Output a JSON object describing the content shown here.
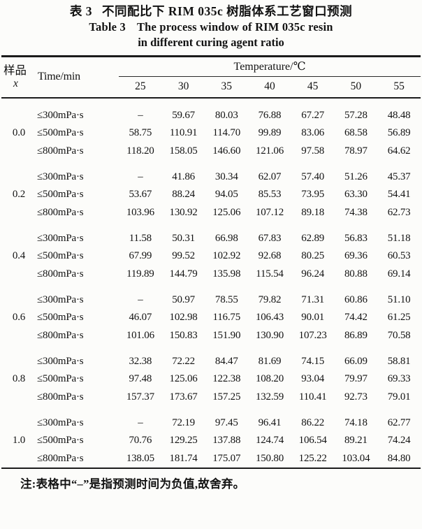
{
  "caption": {
    "zh_label": "表 3",
    "zh_title": "不同配比下 RIM 035c 树脂体系工艺窗口预测",
    "en_label": "Table 3",
    "en_title_line1": "The process window of RIM 035c resin",
    "en_title_line2": "in different curing agent ratio"
  },
  "header": {
    "sample_label": "样品",
    "sample_symbol": "x",
    "time_label": "Time/min",
    "temperature_label": "Temperature/℃",
    "temperatures": [
      "25",
      "30",
      "35",
      "40",
      "45",
      "50",
      "55"
    ]
  },
  "table": {
    "groups": [
      {
        "x": "0.0",
        "rows": [
          {
            "label": "≤300mPa·s",
            "values": [
              "–",
              "59.67",
              "80.03",
              "76.88",
              "67.27",
              "57.28",
              "48.48"
            ]
          },
          {
            "label": "≤500mPa·s",
            "values": [
              "58.75",
              "110.91",
              "114.70",
              "99.89",
              "83.06",
              "68.58",
              "56.89"
            ]
          },
          {
            "label": "≤800mPa·s",
            "values": [
              "118.20",
              "158.05",
              "146.60",
              "121.06",
              "97.58",
              "78.97",
              "64.62"
            ]
          }
        ]
      },
      {
        "x": "0.2",
        "rows": [
          {
            "label": "≤300mPa·s",
            "values": [
              "–",
              "41.86",
              "30.34",
              "62.07",
              "57.40",
              "51.26",
              "45.37"
            ]
          },
          {
            "label": "≤500mPa·s",
            "values": [
              "53.67",
              "88.24",
              "94.05",
              "85.53",
              "73.95",
              "63.30",
              "54.41"
            ]
          },
          {
            "label": "≤800mPa·s",
            "values": [
              "103.96",
              "130.92",
              "125.06",
              "107.12",
              "89.18",
              "74.38",
              "62.73"
            ]
          }
        ]
      },
      {
        "x": "0.4",
        "rows": [
          {
            "label": "≤300mPa·s",
            "values": [
              "11.58",
              "50.31",
              "66.98",
              "67.83",
              "62.89",
              "56.83",
              "51.18"
            ]
          },
          {
            "label": "≤500mPa·s",
            "values": [
              "67.99",
              "99.52",
              "102.92",
              "92.68",
              "80.25",
              "69.36",
              "60.53"
            ]
          },
          {
            "label": "≤800mPa·s",
            "values": [
              "119.89",
              "144.79",
              "135.98",
              "115.54",
              "96.24",
              "80.88",
              "69.14"
            ]
          }
        ]
      },
      {
        "x": "0.6",
        "rows": [
          {
            "label": "≤300mPa·s",
            "values": [
              "–",
              "50.97",
              "78.55",
              "79.82",
              "71.31",
              "60.86",
              "51.10"
            ]
          },
          {
            "label": "≤500mPa·s",
            "values": [
              "46.07",
              "102.98",
              "116.75",
              "106.43",
              "90.01",
              "74.42",
              "61.25"
            ]
          },
          {
            "label": "≤800mPa·s",
            "values": [
              "101.06",
              "150.83",
              "151.90",
              "130.90",
              "107.23",
              "86.89",
              "70.58"
            ]
          }
        ]
      },
      {
        "x": "0.8",
        "rows": [
          {
            "label": "≤300mPa·s",
            "values": [
              "32.38",
              "72.22",
              "84.47",
              "81.69",
              "74.15",
              "66.09",
              "58.81"
            ]
          },
          {
            "label": "≤500mPa·s",
            "values": [
              "97.48",
              "125.06",
              "122.38",
              "108.20",
              "93.04",
              "79.97",
              "69.33"
            ]
          },
          {
            "label": "≤800mPa·s",
            "values": [
              "157.37",
              "173.67",
              "157.25",
              "132.59",
              "110.41",
              "92.73",
              "79.01"
            ]
          }
        ]
      },
      {
        "x": "1.0",
        "rows": [
          {
            "label": "≤300mPa·s",
            "values": [
              "–",
              "72.19",
              "97.45",
              "96.41",
              "86.22",
              "74.18",
              "62.77"
            ]
          },
          {
            "label": "≤500mPa·s",
            "values": [
              "70.76",
              "129.25",
              "137.88",
              "124.74",
              "106.54",
              "89.21",
              "74.24"
            ]
          },
          {
            "label": "≤800mPa·s",
            "values": [
              "138.05",
              "181.74",
              "175.07",
              "150.80",
              "125.22",
              "103.04",
              "84.80"
            ]
          }
        ]
      }
    ]
  },
  "footnote": "注:表格中“–”是指预测时间为负值,故舍弃。"
}
